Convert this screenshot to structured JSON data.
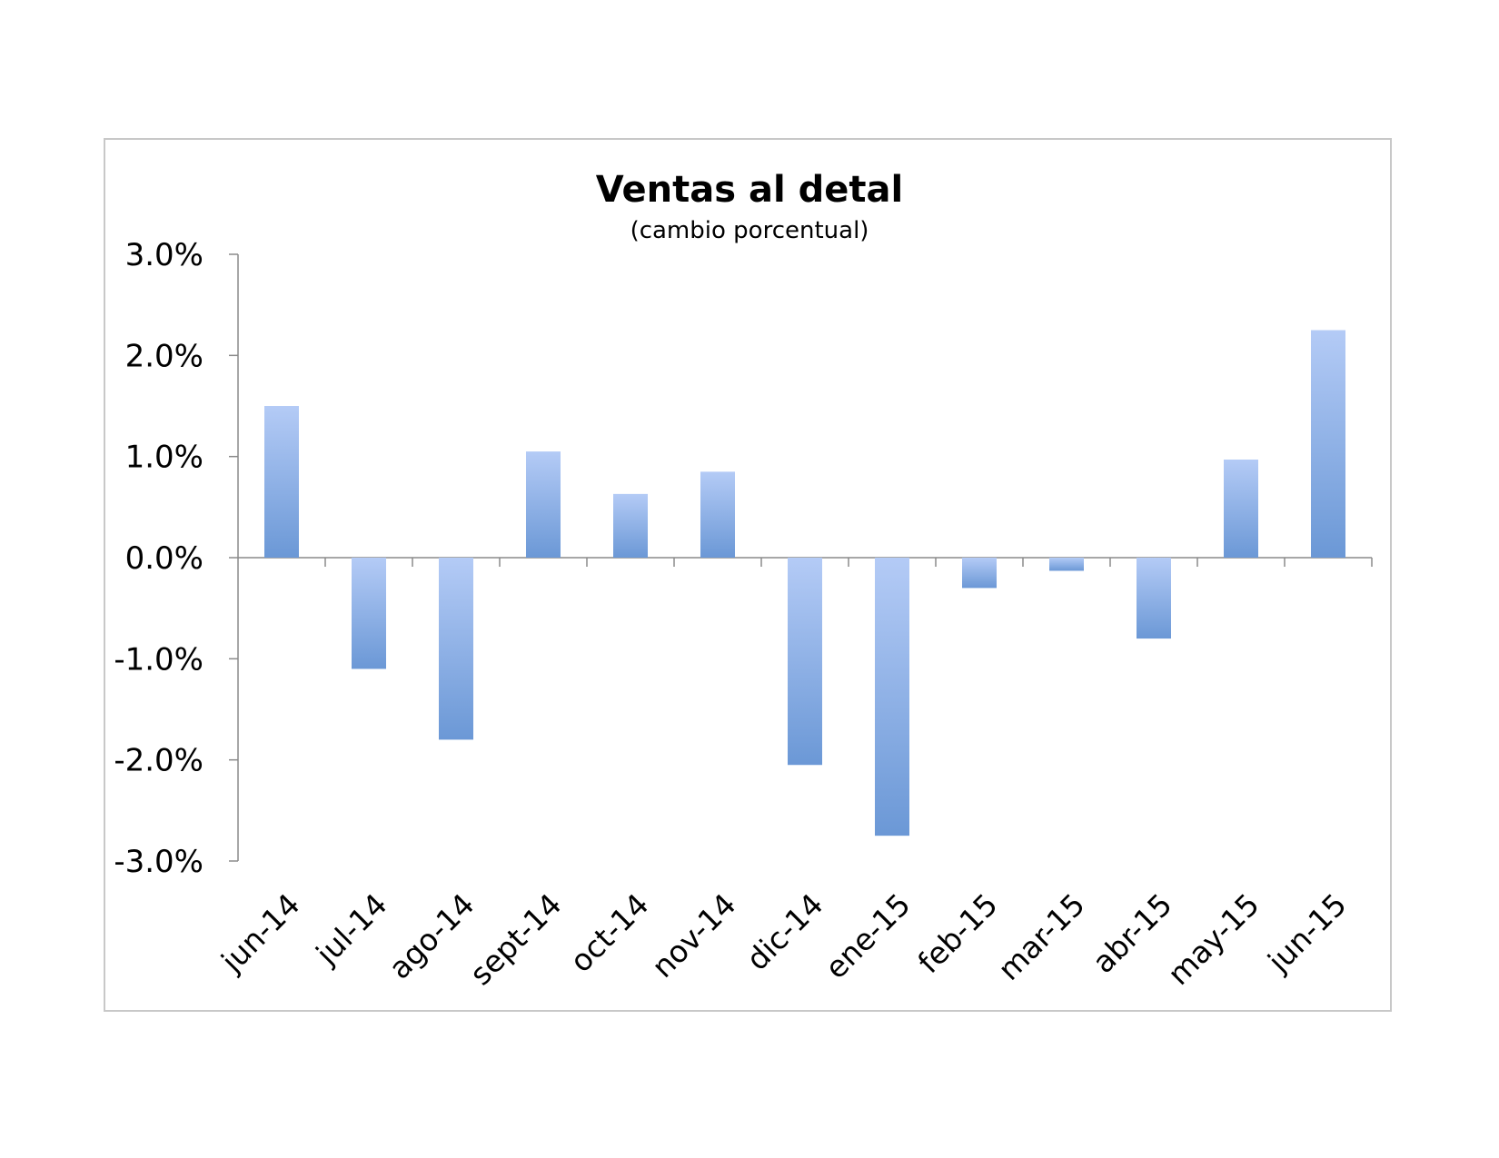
{
  "chart_data": {
    "type": "bar",
    "title": "Ventas al detal",
    "subtitle": "(cambio porcentual)",
    "xlabel": "",
    "ylabel": "",
    "categories": [
      "jun-14",
      "jul-14",
      "ago-14",
      "sept-14",
      "oct-14",
      "nov-14",
      "dic-14",
      "ene-15",
      "feb-15",
      "mar-15",
      "abr-15",
      "may-15",
      "jun-15"
    ],
    "values": [
      1.5,
      -1.1,
      -1.8,
      1.05,
      0.63,
      0.85,
      -2.05,
      -2.75,
      -0.3,
      -0.13,
      -0.8,
      0.97,
      2.25
    ],
    "ylim": [
      -3.0,
      3.0
    ],
    "yticks": [
      3.0,
      2.0,
      1.0,
      0.0,
      -1.0,
      -2.0,
      -3.0
    ],
    "ytick_labels": [
      "3.0%",
      "2.0%",
      "1.0%",
      "0.0%",
      "-1.0%",
      "-2.0%",
      "-3.0%"
    ],
    "grid": false,
    "legend": "none",
    "bar_gradient": {
      "light": "#b4cbf6",
      "dark": "#6b98d6"
    }
  }
}
